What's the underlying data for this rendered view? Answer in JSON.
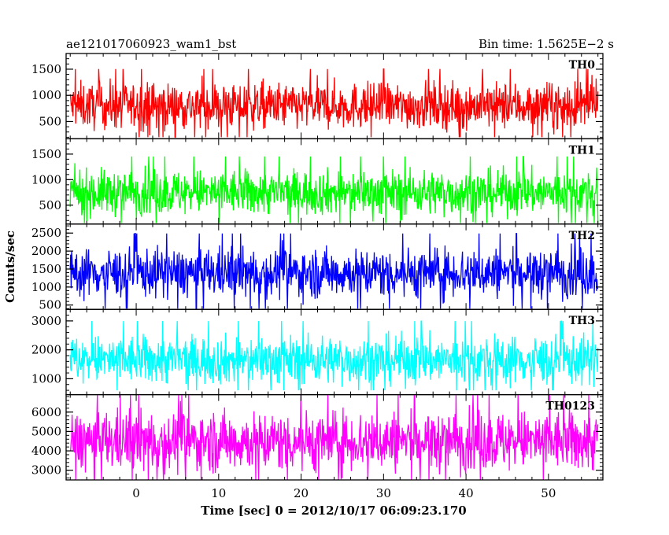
{
  "header": {
    "left": "ae121017060923_wam1_bst",
    "right": "Bin time: 1.5625E−2 s"
  },
  "axes": {
    "ylabel": "Counts/sec",
    "xlabel": "Time [sec] 0 = 2012/10/17 06:09:23.170"
  },
  "chart_data": {
    "type": "line",
    "x_range": [
      -8.5,
      56.6
    ],
    "x_ticks": [
      0,
      10,
      20,
      30,
      40,
      50
    ],
    "x_tick_labels": [
      "0",
      "10",
      "20",
      "30",
      "40",
      "50"
    ],
    "x_minor_step": 2,
    "data_x_range": [
      -8.0,
      56.0
    ],
    "panels": [
      {
        "name": "TH0",
        "color": "#ff0000",
        "ylim": [
          170,
          1800
        ],
        "y_ticks": [
          500,
          1000,
          1500
        ],
        "y_tick_labels": [
          "500",
          "1000",
          "1500"
        ],
        "y_minor_step": 100,
        "mean": 800,
        "noise": 220,
        "min": 200,
        "max": 1800
      },
      {
        "name": "TH1",
        "color": "#00ff00",
        "ylim": [
          130,
          1800
        ],
        "y_ticks": [
          500,
          1000,
          1500
        ],
        "y_tick_labels": [
          "500",
          "1000",
          "1500"
        ],
        "y_minor_step": 100,
        "mean": 750,
        "noise": 220,
        "min": 150,
        "max": 1750
      },
      {
        "name": "TH2",
        "color": "#0000ff",
        "ylim": [
          380,
          2750
        ],
        "y_ticks": [
          500,
          1000,
          1500,
          2000,
          2500
        ],
        "y_tick_labels": [
          "500",
          "1000",
          "1500",
          "2000",
          "2500"
        ],
        "y_minor_step": 100,
        "mean": 1400,
        "noise": 340,
        "min": 400,
        "max": 2750
      },
      {
        "name": "TH3",
        "color": "#00ffff",
        "ylim": [
          450,
          3400
        ],
        "y_ticks": [
          1000,
          2000,
          3000
        ],
        "y_tick_labels": [
          "1000",
          "2000",
          "3000"
        ],
        "y_minor_step": 200,
        "mean": 1650,
        "noise": 420,
        "min": 600,
        "max": 3400
      },
      {
        "name": "TH0123",
        "color": "#ff00ff",
        "ylim": [
          2500,
          6900
        ],
        "y_ticks": [
          3000,
          4000,
          5000,
          6000
        ],
        "y_tick_labels": [
          "3000",
          "4000",
          "5000",
          "6000"
        ],
        "y_minor_step": 200,
        "mean": 4500,
        "noise": 780,
        "min": 2500,
        "max": 6900
      }
    ]
  }
}
